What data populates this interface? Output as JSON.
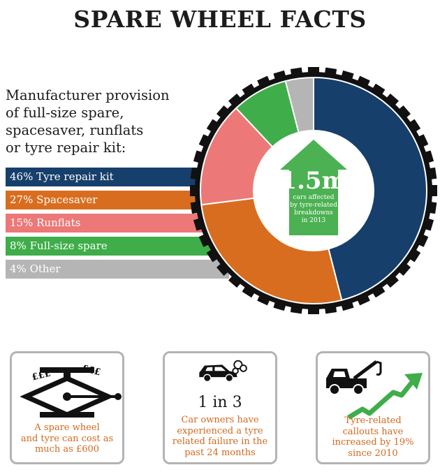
{
  "title": "SPARE WHEEL FACTS",
  "intro": {
    "lines": [
      "Manufacturer provision",
      "of full-size spare,",
      "spacesaver, runflats",
      "or tyre repair kit:"
    ]
  },
  "chart_data": {
    "type": "pie",
    "title": "",
    "categories": [
      "Tyre repair kit",
      "Spacesaver",
      "Runflats",
      "Full-size spare",
      "Other"
    ],
    "values": [
      46,
      27,
      15,
      8,
      4
    ],
    "labels": [
      "46% Tyre repair kit",
      "27% Spacesaver",
      "15% Runflats",
      "8% Full-size spare",
      "4% Other"
    ],
    "colors": [
      "#173f6b",
      "#d96d1f",
      "#ec7878",
      "#3fad49",
      "#b5b5b5"
    ],
    "legend": "left",
    "center": {
      "value": "1.5m",
      "note_lines": [
        "cars affected",
        "by tyre-related",
        "breakdowns",
        "in 2013"
      ],
      "color": "#4bb152"
    }
  },
  "cards": [
    {
      "icon": "car-jack-icon",
      "icon_text": "£££",
      "caption_lines": [
        "A spare wheel",
        "and tyre can cost as",
        "much as £600"
      ]
    },
    {
      "icon": "broken-down-car-icon",
      "stat": "1 in 3",
      "caption_lines": [
        "Car owners have",
        "experienced a tyre",
        "related failure in the",
        "past 24 months"
      ]
    },
    {
      "icon": "tow-truck-icon",
      "caption_lines": [
        "Tyre-related",
        "callouts have",
        "increased by 19%",
        "since 2010"
      ]
    }
  ],
  "colors": {
    "tread": "#111111",
    "accent_orange": "#d2691e",
    "arrow_green": "#3fad49",
    "card_border": "#b3b3b3"
  }
}
